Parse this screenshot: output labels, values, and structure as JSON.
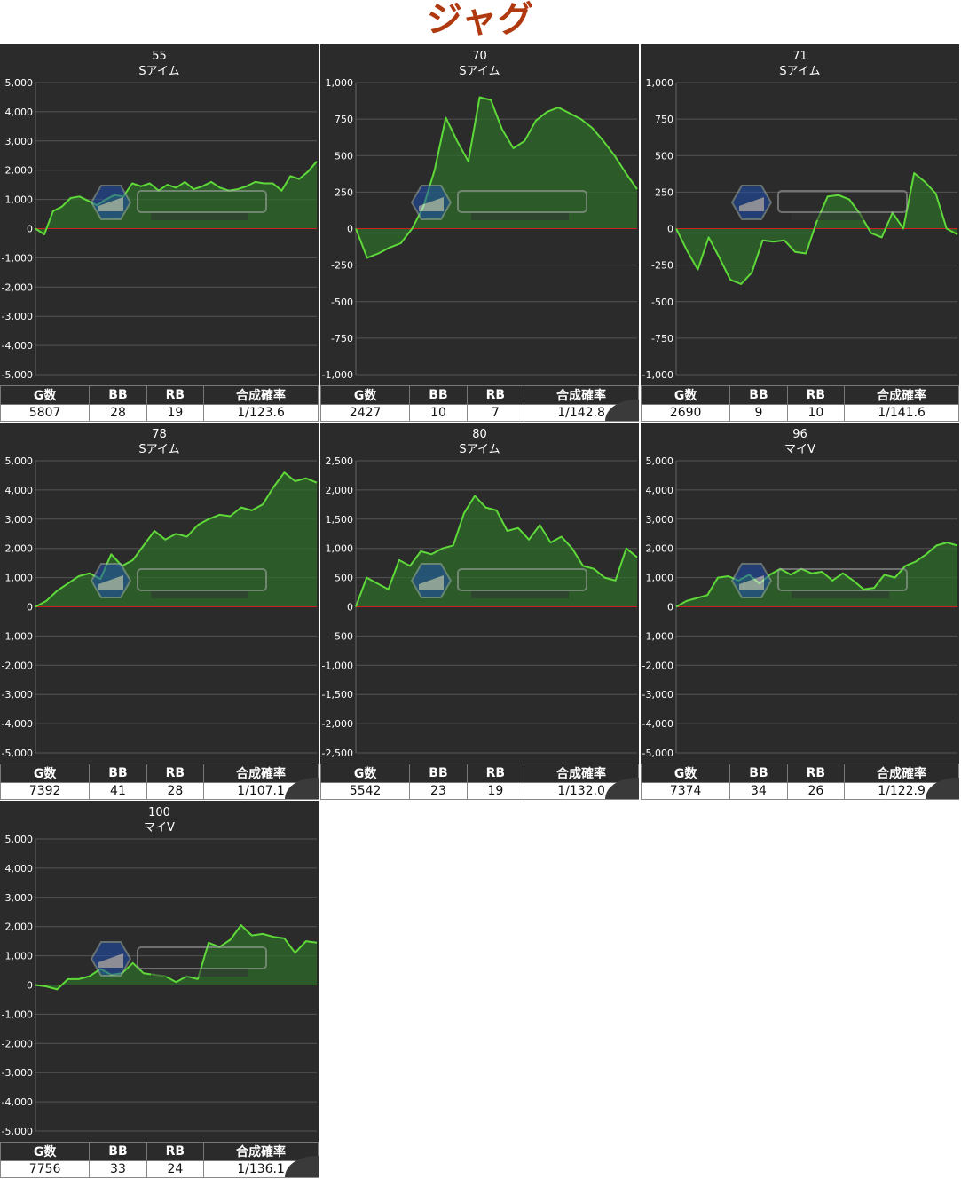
{
  "title": "ジャグ",
  "stat_headers": [
    "G数",
    "BB",
    "RB",
    "合成確率"
  ],
  "colors": {
    "line": "#5fd93a",
    "fill": "#2e6b2a",
    "zero": "#cc2222",
    "grid": "#555555",
    "panel": "#2b2b2b"
  },
  "chart_data": [
    {
      "type": "area",
      "number": "55",
      "machine": "Sアイム",
      "ylim": [
        -5000,
        5000
      ],
      "yticks": [
        "5,000",
        "4,000",
        "3,000",
        "2,000",
        "1,000",
        "0",
        "-1,000",
        "-2,000",
        "-3,000",
        "-4,000",
        "-5,000"
      ],
      "values": [
        0,
        -200,
        600,
        750,
        1050,
        1100,
        950,
        800,
        1000,
        1150,
        1100,
        1550,
        1450,
        1550,
        1300,
        1500,
        1400,
        1600,
        1350,
        1450,
        1600,
        1400,
        1300,
        1350,
        1450,
        1600,
        1550,
        1550,
        1300,
        1800,
        1700,
        1950,
        2300
      ],
      "stats": {
        "g": "5807",
        "bb": "28",
        "rb": "19",
        "rate": "1/123.6"
      }
    },
    {
      "type": "area",
      "number": "70",
      "machine": "Sアイム",
      "ylim": [
        -1000,
        1000
      ],
      "yticks": [
        "1,000",
        "750",
        "500",
        "250",
        "0",
        "-250",
        "-500",
        "-750",
        "-1,000"
      ],
      "values": [
        0,
        -200,
        -170,
        -130,
        -100,
        0,
        150,
        400,
        760,
        600,
        460,
        900,
        880,
        680,
        550,
        600,
        740,
        800,
        830,
        790,
        750,
        690,
        600,
        500,
        380,
        270
      ],
      "stats": {
        "g": "2427",
        "bb": "10",
        "rb": "7",
        "rate": "1/142.8"
      }
    },
    {
      "type": "area",
      "number": "71",
      "machine": "Sアイム",
      "ylim": [
        -1000,
        1000
      ],
      "yticks": [
        "1,000",
        "750",
        "500",
        "250",
        "0",
        "-250",
        "-500",
        "-750",
        "-1,000"
      ],
      "values": [
        0,
        -150,
        -280,
        -60,
        -200,
        -350,
        -380,
        -300,
        -80,
        -90,
        -80,
        -160,
        -170,
        50,
        220,
        230,
        200,
        100,
        -30,
        -60,
        110,
        0,
        380,
        320,
        240,
        0,
        -40
      ],
      "stats": {
        "g": "2690",
        "bb": "9",
        "rb": "10",
        "rate": "1/141.6"
      }
    },
    {
      "type": "area",
      "number": "78",
      "machine": "Sアイム",
      "ylim": [
        -5000,
        5000
      ],
      "yticks": [
        "5,000",
        "4,000",
        "3,000",
        "2,000",
        "1,000",
        "0",
        "-1,000",
        "-2,000",
        "-3,000",
        "-4,000",
        "-5,000"
      ],
      "values": [
        0,
        200,
        550,
        800,
        1050,
        1150,
        950,
        1800,
        1400,
        1600,
        2100,
        2600,
        2300,
        2500,
        2400,
        2800,
        3000,
        3150,
        3100,
        3400,
        3300,
        3500,
        4100,
        4600,
        4300,
        4400,
        4250
      ],
      "stats": {
        "g": "7392",
        "bb": "41",
        "rb": "28",
        "rate": "1/107.1"
      }
    },
    {
      "type": "area",
      "number": "80",
      "machine": "Sアイム",
      "ylim": [
        -2500,
        2500
      ],
      "yticks": [
        "2,500",
        "2,000",
        "1,500",
        "1,000",
        "500",
        "0",
        "-500",
        "-1,000",
        "-1,500",
        "-2,000",
        "-2,500"
      ],
      "values": [
        0,
        500,
        400,
        300,
        800,
        700,
        950,
        900,
        1000,
        1050,
        1600,
        1900,
        1700,
        1650,
        1300,
        1350,
        1150,
        1400,
        1100,
        1200,
        1000,
        700,
        650,
        500,
        450,
        1000,
        850
      ],
      "stats": {
        "g": "5542",
        "bb": "23",
        "rb": "19",
        "rate": "1/132.0"
      }
    },
    {
      "type": "area",
      "number": "96",
      "machine": "マイV",
      "ylim": [
        -5000,
        5000
      ],
      "yticks": [
        "5,000",
        "4,000",
        "3,000",
        "2,000",
        "1,000",
        "0",
        "-1,000",
        "-2,000",
        "-3,000",
        "-4,000",
        "-5,000"
      ],
      "values": [
        0,
        200,
        300,
        400,
        1000,
        1050,
        900,
        1100,
        800,
        1100,
        1300,
        1100,
        1300,
        1150,
        1200,
        900,
        1150,
        900,
        600,
        650,
        1100,
        1000,
        1400,
        1550,
        1800,
        2100,
        2200,
        2100
      ],
      "stats": {
        "g": "7374",
        "bb": "34",
        "rb": "26",
        "rate": "1/122.9"
      }
    },
    {
      "type": "area",
      "number": "100",
      "machine": "マイV",
      "ylim": [
        -5000,
        5000
      ],
      "yticks": [
        "5,000",
        "4,000",
        "3,000",
        "2,000",
        "1,000",
        "0",
        "-1,000",
        "-2,000",
        "-3,000",
        "-4,000",
        "-5,000"
      ],
      "values": [
        0,
        -50,
        -150,
        200,
        200,
        300,
        550,
        350,
        400,
        750,
        400,
        350,
        300,
        100,
        300,
        200,
        1450,
        1300,
        1550,
        2050,
        1700,
        1750,
        1650,
        1600,
        1100,
        1500,
        1450
      ],
      "stats": {
        "g": "7756",
        "bb": "33",
        "rb": "24",
        "rate": "1/136.1"
      }
    }
  ]
}
